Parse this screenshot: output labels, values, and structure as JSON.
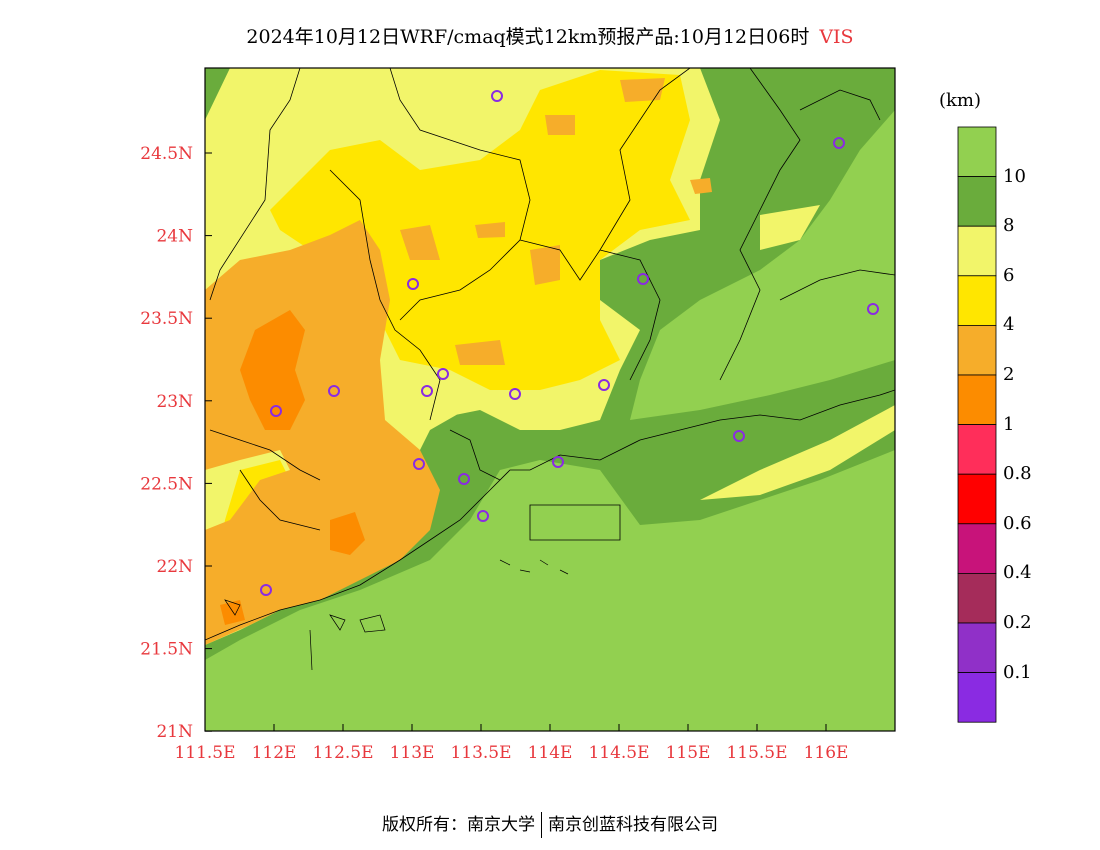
{
  "title": {
    "main": "2024年10月12日WRF/cmaq模式12km预报产品:10月12日06时",
    "variable": "VIS"
  },
  "map": {
    "lon_ticks": [
      "111.5E",
      "112E",
      "112.5E",
      "113E",
      "113.5E",
      "114E",
      "114.5E",
      "115E",
      "115.5E",
      "116E"
    ],
    "lat_ticks": [
      "24.5N",
      "24N",
      "23.5N",
      "23N",
      "22.5N",
      "22N",
      "21.5N",
      "21N"
    ],
    "ocean_color": "#92d050"
  },
  "colorbar": {
    "unit": "(km)",
    "labels": [
      "10",
      "8",
      "6",
      "4",
      "2",
      "1",
      "0.8",
      "0.6",
      "0.4",
      "0.2",
      "0.1"
    ],
    "colors_top_to_bottom": [
      "#92d050",
      "#6aac3c",
      "#f2f56a",
      "#ffe600",
      "#f6ad2a",
      "#fc8c00",
      "#ff2e5a",
      "#ff0000",
      "#c8137a",
      "#a52c5a",
      "#9030c8",
      "#8a2be2"
    ]
  },
  "stations_icon": "circle-marker-icon",
  "copyright": {
    "left": "版权所有：南京大学",
    "right": "南京创蓝科技有限公司"
  }
}
